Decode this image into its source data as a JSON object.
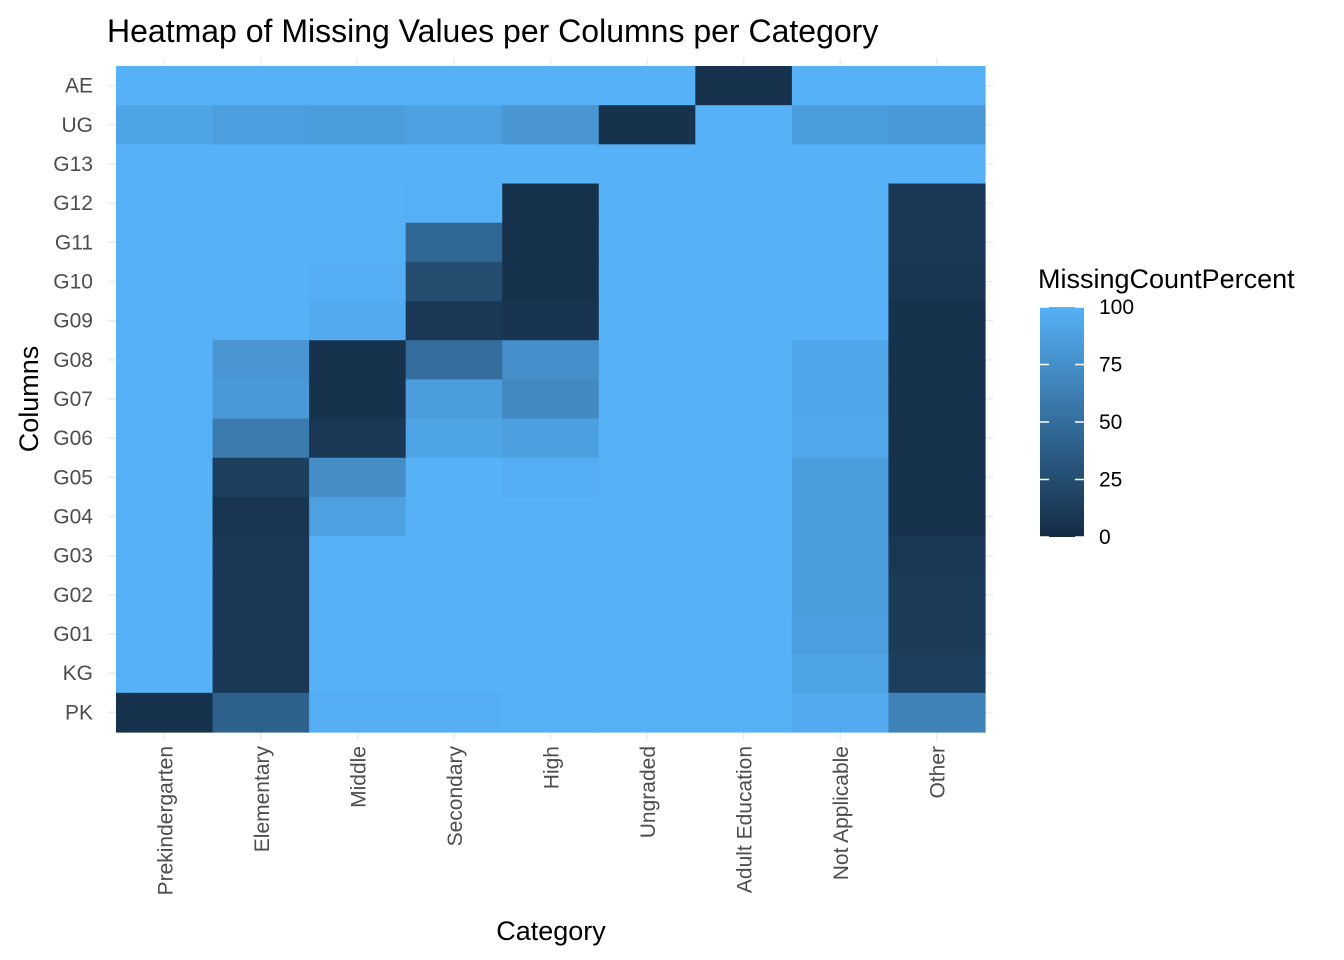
{
  "chart_data": {
    "type": "heatmap",
    "title": "Heatmap of Missing Values per Columns per Category",
    "xlabel": "Category",
    "ylabel": "Columns",
    "categories": [
      "Prekindergarten",
      "Elementary",
      "Middle",
      "Secondary",
      "High",
      "Ungraded",
      "Adult Education",
      "Not Applicable",
      "Other"
    ],
    "rows": [
      "AE",
      "UG",
      "G13",
      "G12",
      "G11",
      "G10",
      "G09",
      "G08",
      "G07",
      "G06",
      "G05",
      "G04",
      "G03",
      "G02",
      "G01",
      "KG",
      "PK"
    ],
    "values": [
      [
        100,
        100,
        100,
        100,
        100,
        100,
        5,
        100,
        100
      ],
      [
        90,
        86,
        85,
        88,
        80,
        5,
        100,
        85,
        82
      ],
      [
        100,
        100,
        100,
        100,
        100,
        100,
        100,
        100,
        100
      ],
      [
        100,
        100,
        100,
        99,
        5,
        100,
        100,
        100,
        10
      ],
      [
        100,
        100,
        100,
        45,
        5,
        100,
        100,
        100,
        10
      ],
      [
        100,
        100,
        98,
        25,
        5,
        100,
        100,
        100,
        8
      ],
      [
        100,
        100,
        95,
        10,
        7,
        100,
        100,
        100,
        5
      ],
      [
        100,
        80,
        5,
        50,
        75,
        100,
        100,
        92,
        5
      ],
      [
        100,
        82,
        5,
        85,
        70,
        100,
        100,
        92,
        5
      ],
      [
        100,
        60,
        10,
        90,
        87,
        100,
        100,
        93,
        5
      ],
      [
        100,
        15,
        73,
        100,
        98,
        100,
        100,
        85,
        5
      ],
      [
        100,
        8,
        88,
        100,
        100,
        100,
        100,
        85,
        5
      ],
      [
        100,
        10,
        100,
        100,
        100,
        100,
        100,
        85,
        10
      ],
      [
        100,
        10,
        100,
        100,
        100,
        100,
        100,
        84,
        12
      ],
      [
        100,
        10,
        100,
        100,
        100,
        100,
        100,
        86,
        12
      ],
      [
        100,
        10,
        100,
        100,
        100,
        100,
        100,
        90,
        15
      ],
      [
        5,
        40,
        98,
        98,
        99,
        100,
        100,
        95,
        65
      ]
    ],
    "legend": {
      "title": "MissingCountPercent",
      "ticks": [
        100,
        75,
        50,
        25,
        0
      ],
      "range": [
        0,
        100
      ]
    },
    "colors": {
      "low": "#132b43",
      "high": "#56b1f7"
    }
  }
}
